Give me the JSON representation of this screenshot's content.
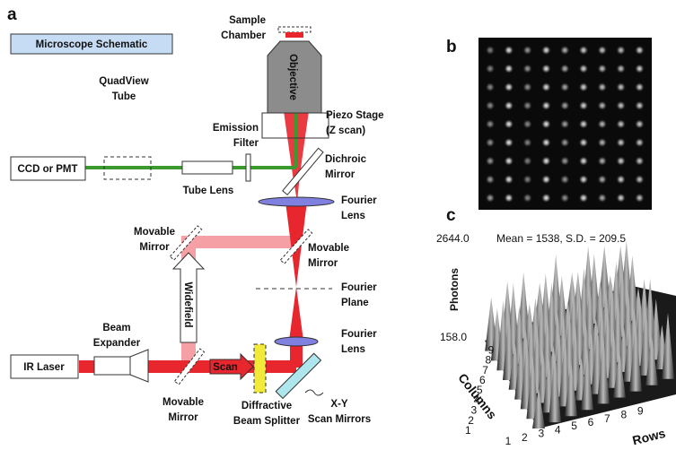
{
  "panel_letters": [
    "a",
    "b",
    "c"
  ],
  "schematic": {
    "title": "Microscope Schematic",
    "labels": [
      [
        "Sample",
        "Chamber"
      ],
      [
        "Objective"
      ],
      [
        "Piezo Stage",
        "(Z scan)"
      ],
      [
        "Emission",
        "Filter"
      ],
      [
        "QuadView",
        "Tube"
      ],
      [
        "CCD or PMT"
      ],
      [
        "Tube Lens"
      ],
      [
        "Dichroic",
        "Mirror"
      ],
      [
        "Fourier",
        "Lens"
      ],
      [
        "Movable",
        "Mirror"
      ],
      [
        "Movable",
        "Mirror"
      ],
      [
        "Fourier",
        "Plane"
      ],
      [
        "Fourier",
        "Lens"
      ],
      [
        "Widefield"
      ],
      [
        "Beam",
        "Expander"
      ],
      [
        "IR Laser"
      ],
      [
        "Scan"
      ],
      [
        "Movable",
        "Mirror"
      ],
      [
        "Diffractive",
        "Beam Splitter"
      ],
      [
        "X-Y",
        "Scan Mirrors"
      ]
    ]
  },
  "plot": {
    "z_max": "2644.0",
    "z_min": "158.0",
    "z_label": "Photons",
    "stats": "Mean = 1538, S.D. = 209.5",
    "columns_label": "Columns",
    "rows_label": "Rows",
    "columns": [
      1,
      2,
      3,
      4,
      5,
      6,
      7,
      8,
      9
    ],
    "rows": [
      1,
      2,
      3,
      4,
      5,
      6,
      7,
      8,
      9
    ]
  }
}
